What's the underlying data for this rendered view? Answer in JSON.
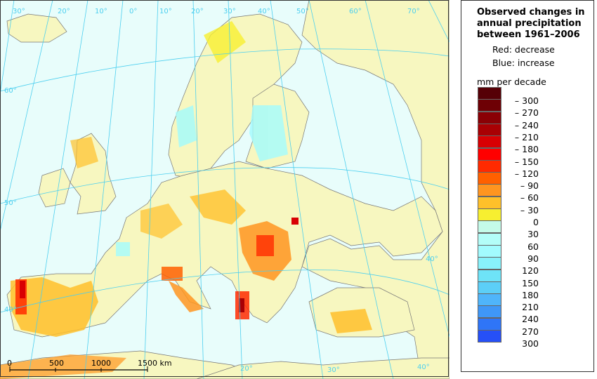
{
  "legend": {
    "title_lines": [
      "Observed changes in",
      "annual precipitation",
      "between 1961–2006"
    ],
    "red_note": "Red: decrease",
    "blue_note": "Blue: increase",
    "unit": "mm per decade",
    "swatch_colors": [
      "#560006",
      "#6e0005",
      "#8a0005",
      "#a90004",
      "#d80003",
      "#ff0000",
      "#ff2a00",
      "#ff6000",
      "#ff9520",
      "#ffc02a",
      "#f7ef30",
      "#c4fbe9",
      "#b3fdf8",
      "#a2fbfe",
      "#88f2fb",
      "#6ee3f7",
      "#5ccff7",
      "#4fb5fb",
      "#3f97f7",
      "#2f75f7",
      "#2650f7"
    ],
    "labels": [
      "– 300",
      "– 270",
      "– 240",
      "– 210",
      "– 180",
      "– 150",
      "– 120",
      "– 90",
      "– 60",
      "– 30",
      "0",
      "30",
      "60",
      "90",
      "120",
      "150",
      "180",
      "210",
      "240",
      "270",
      "300"
    ]
  },
  "map": {
    "sea_color": "#e8fdfb",
    "land_color": "#f7f7c0",
    "graticule_color": "#4ccfef",
    "longitude_labels": [
      "30°",
      "20°",
      "10°",
      "0°",
      "10°",
      "20°",
      "30°",
      "40°",
      "50°",
      "60°",
      "70°"
    ],
    "latitude_labels_left": [
      "60°",
      "50°",
      "40°"
    ],
    "latitude_labels_other": [
      "40°",
      "20°",
      "30°",
      "40°"
    ],
    "scale_bar": {
      "ticks": [
        "0",
        "500",
        "1000",
        "1500 km"
      ]
    }
  }
}
